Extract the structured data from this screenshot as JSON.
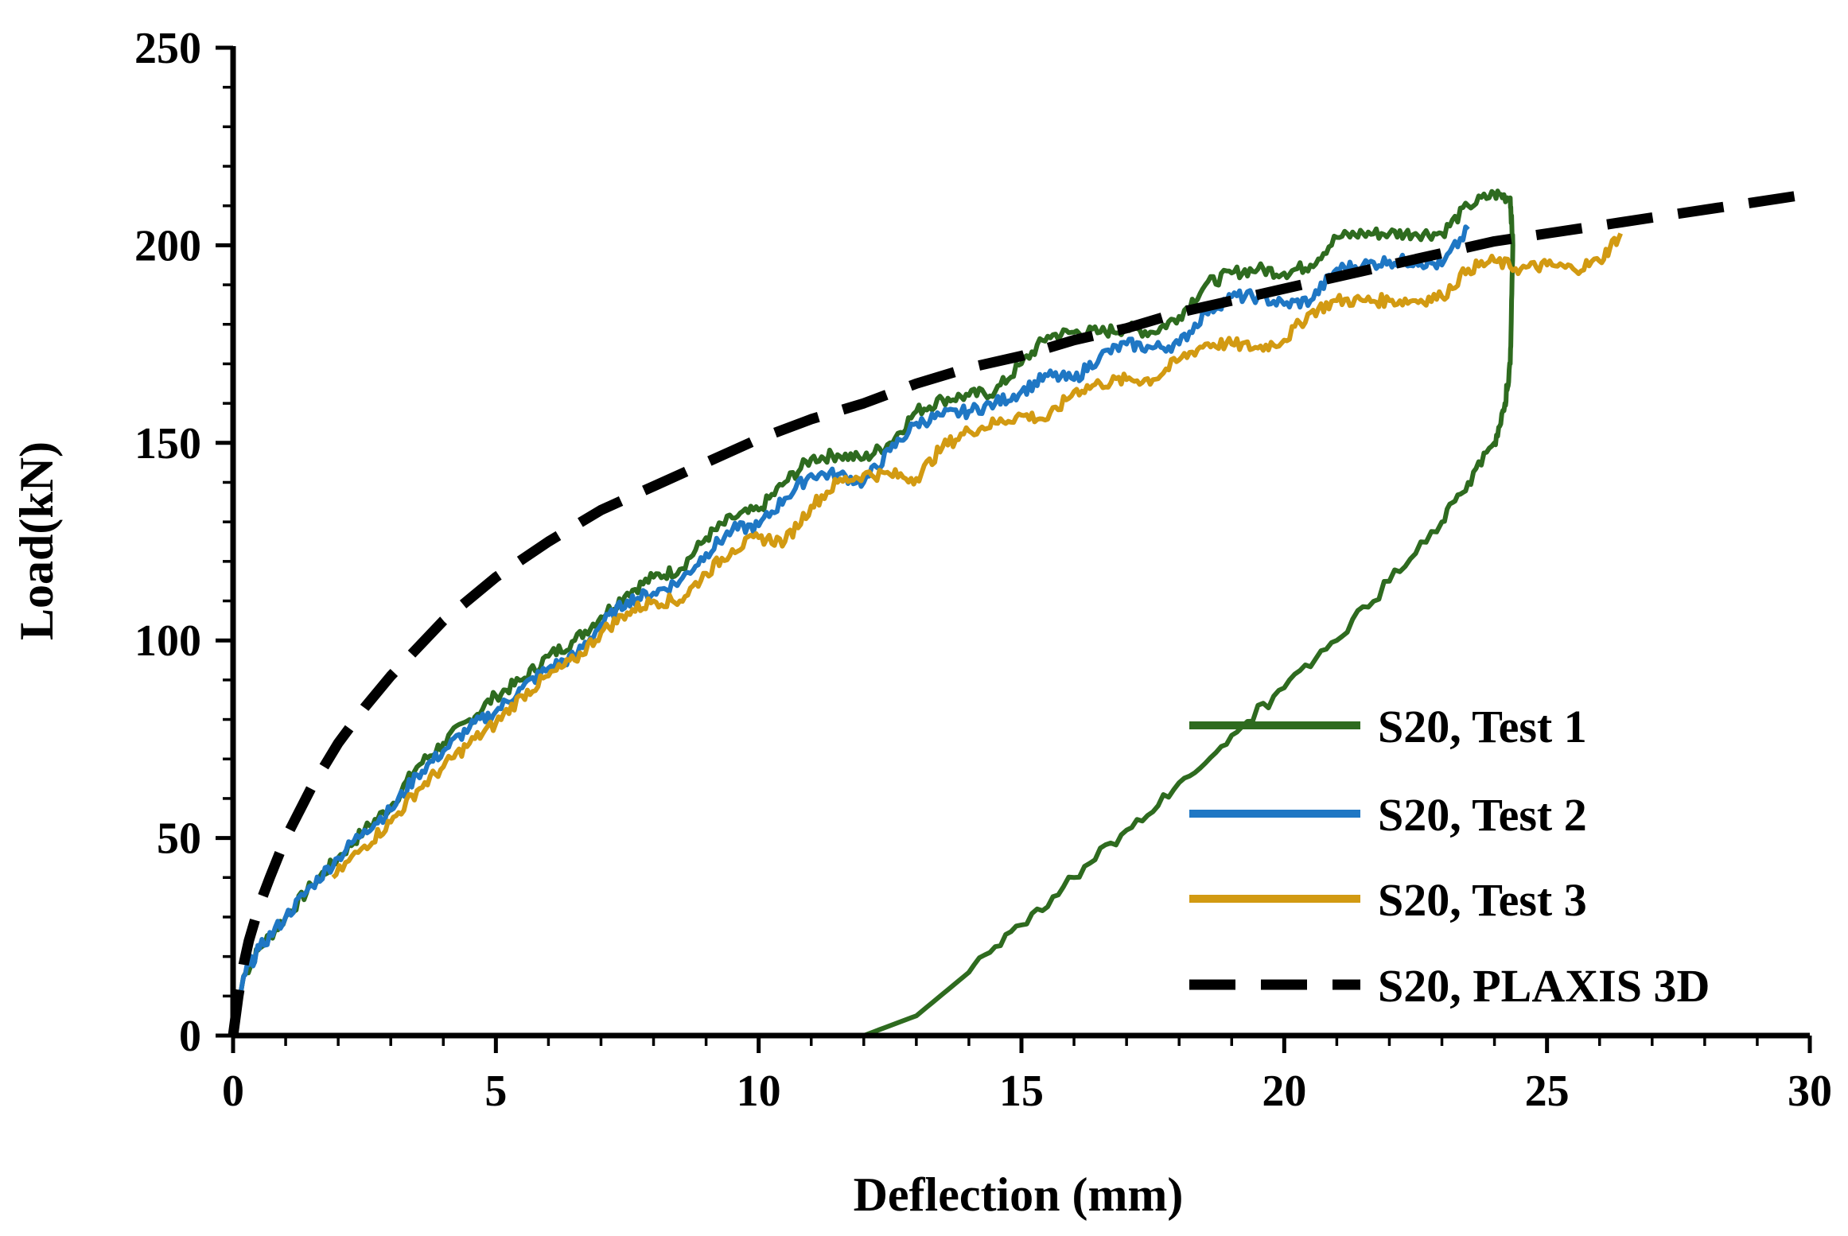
{
  "chart_data": {
    "type": "line",
    "title": "",
    "xlabel": "Deflection (mm)",
    "ylabel": "Load(kN)",
    "xlim": [
      0,
      30
    ],
    "ylim": [
      0,
      250
    ],
    "xticks": [
      0,
      5,
      10,
      15,
      20,
      25,
      30
    ],
    "yticks": [
      0,
      50,
      100,
      150,
      200,
      250
    ],
    "xtick_labels": [
      "0",
      "5",
      "10",
      "15",
      "20",
      "25",
      "30"
    ],
    "ytick_labels": [
      "0",
      "50",
      "100",
      "150",
      "200",
      "250"
    ],
    "grid": false,
    "legend_position": "bottom-right",
    "series": [
      {
        "name": "S20, Test 1",
        "color": "#2e6b1f",
        "dash": "solid",
        "noisy": true,
        "x": [
          0,
          0.2,
          0.5,
          1.0,
          1.5,
          2.0,
          2.5,
          3.0,
          3.5,
          4.0,
          4.5,
          5.0,
          5.5,
          6.0,
          6.5,
          7.0,
          7.5,
          8.0,
          8.5,
          9.0,
          9.5,
          10.0,
          10.5,
          11.0,
          11.5,
          12.0,
          12.5,
          13.0,
          13.5,
          14.0,
          14.5,
          15.0,
          15.5,
          16.0,
          16.5,
          17.0,
          17.5,
          18.0,
          18.5,
          19.0,
          19.5,
          20.0,
          20.5,
          21.0,
          21.5,
          22.0,
          22.5,
          23.0,
          23.5,
          24.0,
          24.3,
          24.35,
          24.3,
          24.2,
          24.0,
          23.5,
          23.0,
          22.0,
          21.0,
          20.0,
          19.0,
          18.0,
          17.0,
          16.0,
          15.0,
          14.0,
          13.0,
          12.0,
          11.0,
          10.5
        ],
        "y": [
          0,
          15,
          22,
          30,
          38,
          45,
          52,
          58,
          68,
          74,
          80,
          86,
          90,
          96,
          100,
          106,
          112,
          116,
          118,
          126,
          131,
          133,
          140,
          146,
          147,
          146,
          150,
          158,
          161,
          162,
          163,
          170,
          177,
          178,
          178,
          179,
          178,
          182,
          190,
          193,
          194,
          193,
          195,
          202,
          203,
          203,
          203,
          203,
          210,
          213,
          212,
          200,
          170,
          160,
          150,
          140,
          130,
          115,
          100,
          88,
          76,
          64,
          52,
          40,
          28,
          16,
          5,
          0,
          0,
          0
        ]
      },
      {
        "name": "S20, Test 2",
        "color": "#1f77c4",
        "dash": "solid",
        "noisy": true,
        "x": [
          0,
          0.2,
          0.5,
          1.0,
          1.5,
          2.0,
          2.5,
          3.0,
          3.5,
          4.0,
          4.5,
          5.0,
          5.5,
          6.0,
          6.5,
          7.0,
          7.5,
          8.0,
          8.5,
          9.0,
          9.5,
          10.0,
          10.5,
          11.0,
          11.5,
          12.0,
          12.5,
          13.0,
          13.5,
          14.0,
          14.5,
          15.0,
          15.5,
          16.0,
          16.5,
          17.0,
          17.5,
          18.0,
          18.5,
          19.0,
          19.5,
          20.0,
          20.5,
          21.0,
          21.5,
          22.0,
          22.5,
          23.0,
          23.5
        ],
        "y": [
          0,
          15,
          22,
          30,
          38,
          45,
          52,
          57,
          66,
          72,
          78,
          82,
          88,
          93,
          96,
          104,
          110,
          112,
          115,
          122,
          128,
          129,
          136,
          142,
          142,
          140,
          148,
          155,
          157,
          158,
          160,
          163,
          167,
          166,
          172,
          175,
          174,
          175,
          183,
          187,
          187,
          185,
          186,
          194,
          195,
          196,
          196,
          195,
          204
        ]
      },
      {
        "name": "S20, Test 3",
        "color": "#d29a12",
        "dash": "solid",
        "noisy": true,
        "x": [
          1.9,
          2.5,
          3.0,
          3.5,
          4.0,
          4.5,
          5.0,
          5.5,
          6.0,
          6.5,
          7.0,
          7.5,
          8.0,
          8.5,
          9.0,
          9.5,
          10.0,
          10.5,
          11.0,
          11.5,
          12.0,
          12.5,
          13.0,
          13.5,
          14.0,
          14.5,
          15.0,
          15.5,
          16.0,
          16.5,
          17.0,
          17.5,
          18.0,
          18.5,
          19.0,
          19.5,
          20.0,
          20.5,
          21.0,
          21.5,
          22.0,
          22.5,
          23.0,
          23.5,
          24.0,
          24.5,
          25.0,
          25.5,
          26.0,
          26.4
        ],
        "y": [
          40,
          48,
          54,
          62,
          68,
          74,
          79,
          86,
          91,
          95,
          102,
          107,
          110,
          110,
          117,
          123,
          126,
          125,
          134,
          140,
          142,
          142,
          141,
          149,
          153,
          155,
          157,
          156,
          163,
          165,
          166,
          166,
          171,
          175,
          175,
          174,
          176,
          183,
          186,
          186,
          186,
          186,
          187,
          194,
          196,
          194,
          195,
          194,
          196,
          203
        ]
      },
      {
        "name": "S20, PLAXIS 3D",
        "color": "#000000",
        "dash": "dashed",
        "noisy": false,
        "x": [
          0,
          0.1,
          0.2,
          0.3,
          0.5,
          0.7,
          1.0,
          1.5,
          2.0,
          2.5,
          3.0,
          4.0,
          5.0,
          6.0,
          7.0,
          8.0,
          9.0,
          10.0,
          11.0,
          12.0,
          13.0,
          14.0,
          15.0,
          16.0,
          17.0,
          18.0,
          19.0,
          20.0,
          21.0,
          22.0,
          23.0,
          24.0,
          25.0,
          26.0,
          27.0,
          28.0,
          29.0,
          30.0
        ],
        "y": [
          0,
          10,
          18,
          24,
          33,
          40,
          50,
          63,
          74,
          83,
          91,
          105,
          116,
          125,
          133,
          139,
          145,
          151,
          156,
          160,
          165,
          169,
          172,
          176,
          179,
          183,
          186,
          189,
          192,
          195,
          198,
          201,
          203,
          205,
          207,
          209,
          211,
          213
        ]
      }
    ]
  }
}
